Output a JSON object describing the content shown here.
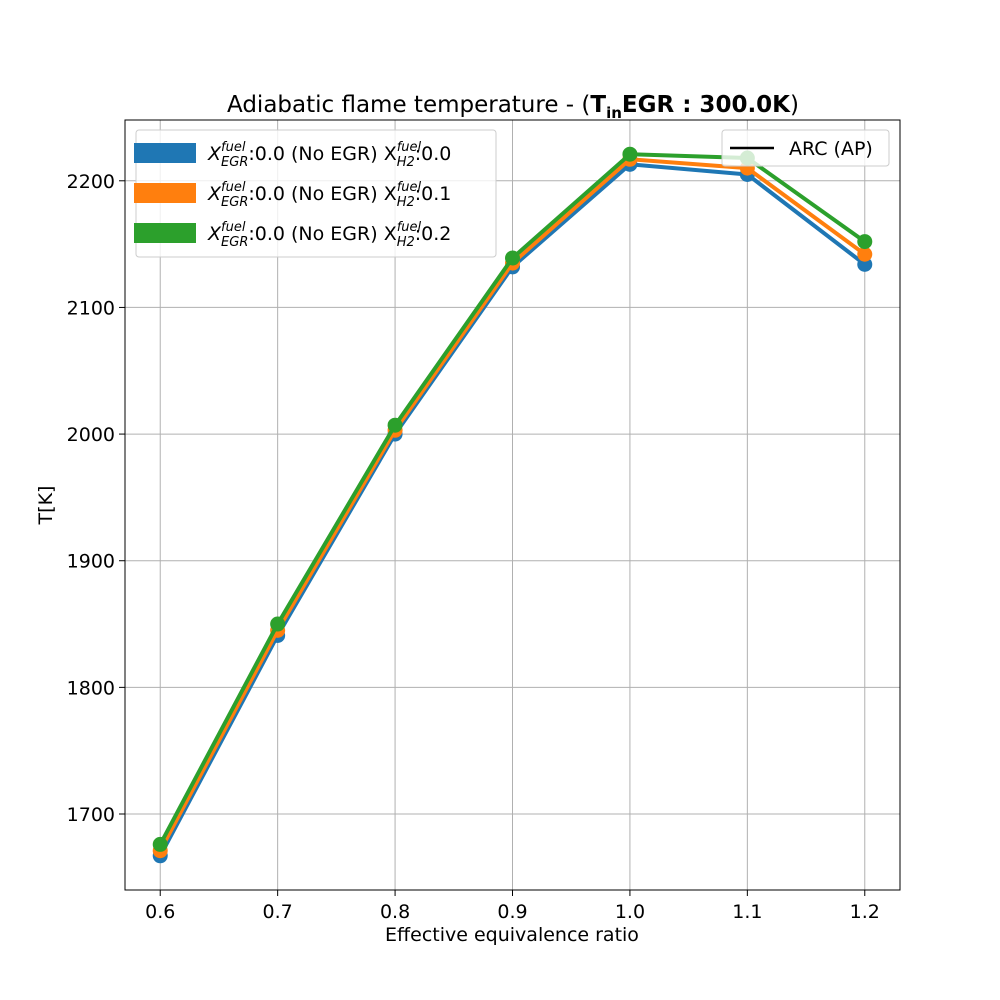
{
  "chart_data": {
    "type": "line",
    "title_prefix": "Adiabatic flame temperature - (",
    "title_bold_main": "T",
    "title_bold_sub": "in",
    "title_bold_rest": "EGR : 300.0K",
    "title_suffix": ")",
    "xlabel": "Effective equivalence ratio",
    "ylabel": "T[K]",
    "xlim": [
      0.57,
      1.23
    ],
    "ylim": [
      1640,
      2248
    ],
    "x": [
      0.6,
      0.7,
      0.8,
      0.9,
      1.0,
      1.1,
      1.2
    ],
    "x_tick_labels": [
      "0.6",
      "0.7",
      "0.8",
      "0.9",
      "1.0",
      "1.1",
      "1.2"
    ],
    "y_ticks": [
      1700,
      1800,
      1900,
      2000,
      2100,
      2200
    ],
    "y_tick_labels": [
      "1700",
      "1800",
      "1900",
      "2000",
      "2100",
      "2200"
    ],
    "grid": true,
    "series": [
      {
        "name": "X_EGR^fuel:0.0 (No EGR) X_H2^fuel:0.0",
        "legend": {
          "pre": "X",
          "sup1": "fuel",
          "sub1": "EGR",
          "mid": ":0.0 (No EGR) X",
          "sup2": "fuel",
          "sub2": "H2",
          "post": ":0.0"
        },
        "color": "#1f77b4",
        "values": [
          1667,
          1841,
          2000,
          2132,
          2213,
          2205,
          2134
        ]
      },
      {
        "name": "X_EGR^fuel:0.0 (No EGR) X_H2^fuel:0.1",
        "legend": {
          "pre": "X",
          "sup1": "fuel",
          "sub1": "EGR",
          "mid": ":0.0 (No EGR) X",
          "sup2": "fuel",
          "sub2": "H2",
          "post": ":0.1"
        },
        "color": "#ff7f0e",
        "values": [
          1671,
          1845,
          2003,
          2135,
          2217,
          2210,
          2142
        ]
      },
      {
        "name": "X_EGR^fuel:0.0 (No EGR) X_H2^fuel:0.2",
        "legend": {
          "pre": "X",
          "sup1": "fuel",
          "sub1": "EGR",
          "mid": ":0.0 (No EGR) X",
          "sup2": "fuel",
          "sub2": "H2",
          "post": ":0.2"
        },
        "color": "#2ca02c",
        "values": [
          1676,
          1850,
          2007,
          2139,
          2221,
          2218,
          2152
        ]
      }
    ],
    "style_legend": {
      "label": "ARC (AP)",
      "color": "#000000",
      "placement": "upper right"
    },
    "series_legend_placement": "upper left"
  }
}
